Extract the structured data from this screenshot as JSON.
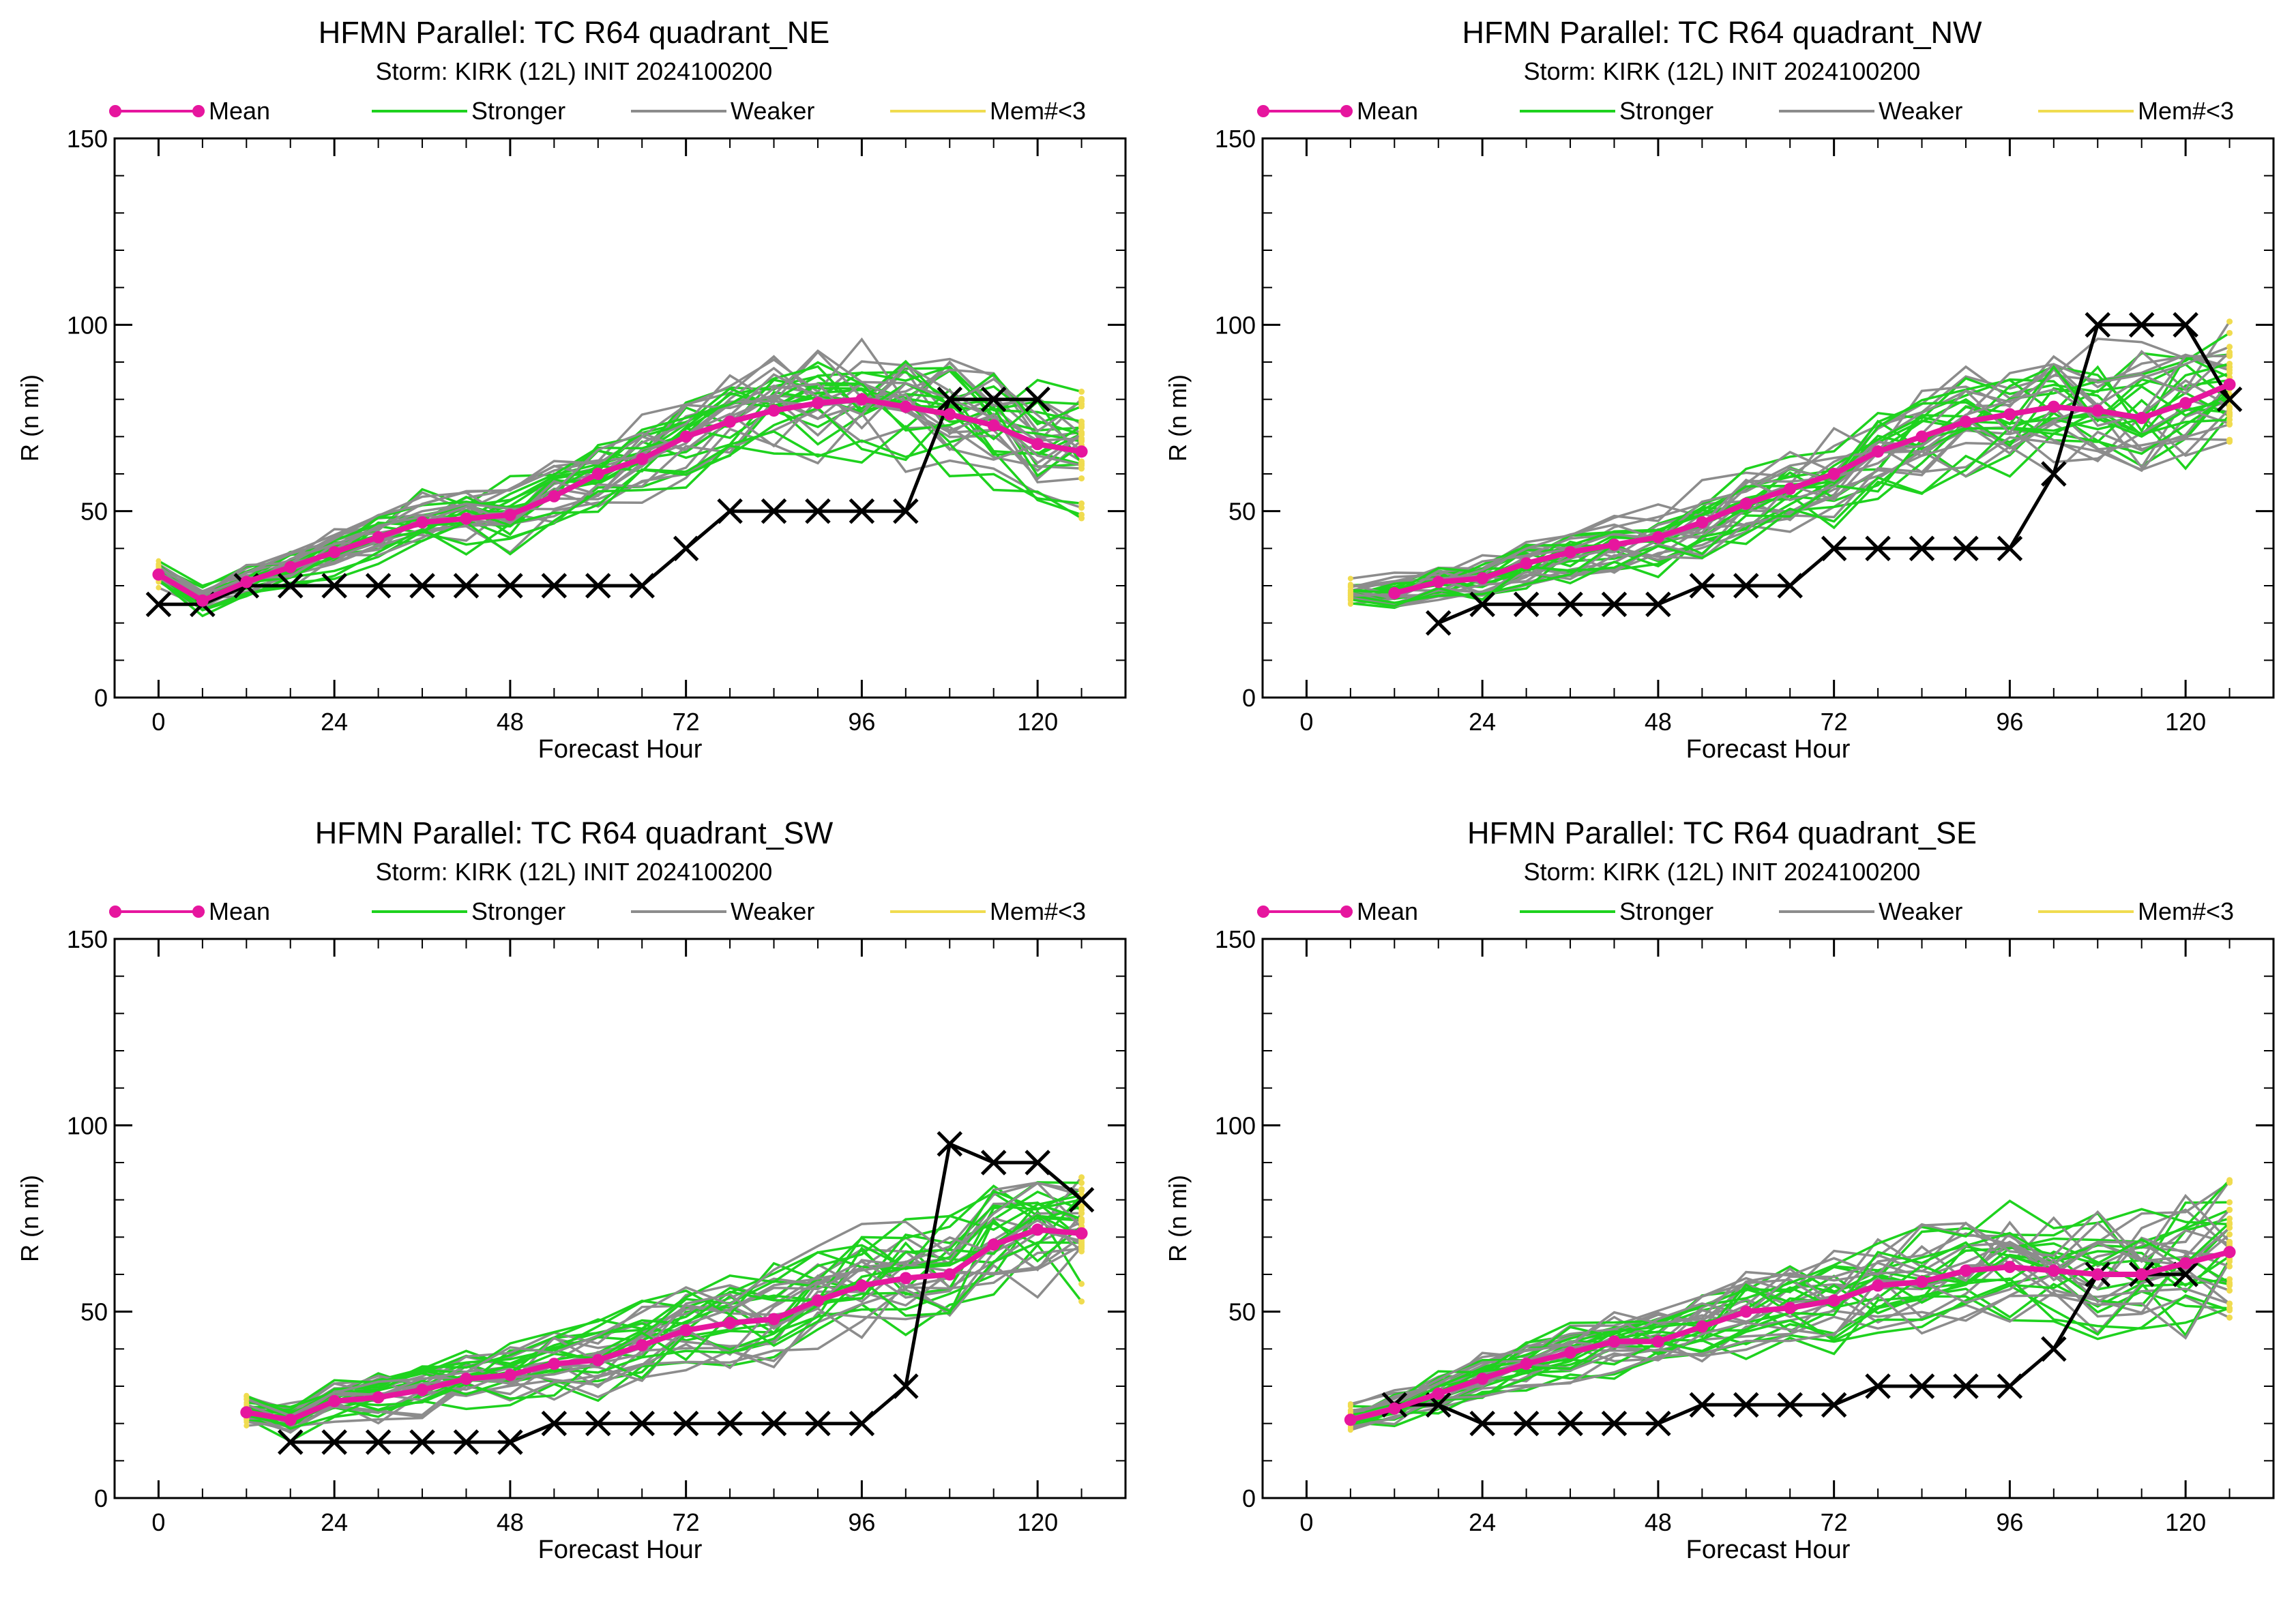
{
  "legend": [
    {
      "label": "Mean",
      "color": "#e6169e",
      "marker": true
    },
    {
      "label": "Stronger",
      "color": "#1ed21e",
      "marker": false
    },
    {
      "label": "Weaker",
      "color": "#8c8c8c",
      "marker": false
    },
    {
      "label": "Mem#<3",
      "color": "#f0dc50",
      "marker": false
    }
  ],
  "colors": {
    "mean": "#e6169e",
    "stronger": "#1ed21e",
    "weaker": "#8c8c8c",
    "few_members": "#f0dc50",
    "best_track": "#000000"
  },
  "panels": [
    {
      "title": "HFMN Parallel: TC  R64 quadrant_NE",
      "subtitle": "Storm: KIRK (12L) INIT 2024100200",
      "chart_data": {
        "type": "line",
        "xlabel": "Forecast Hour",
        "ylabel": "R (n mi)",
        "xlim": [
          -6,
          132
        ],
        "ylim": [
          0,
          150
        ],
        "xticks": [
          0,
          24,
          48,
          72,
          96,
          120
        ],
        "yticks": [
          0,
          50,
          100,
          150
        ],
        "mean": {
          "x": [
            0,
            6,
            12,
            18,
            24,
            30,
            36,
            42,
            48,
            54,
            60,
            66,
            72,
            78,
            84,
            90,
            96,
            102,
            108,
            114,
            120,
            126
          ],
          "y": [
            33,
            26,
            31,
            35,
            39,
            43,
            47,
            48,
            49,
            54,
            60,
            64,
            70,
            74,
            77,
            79,
            80,
            78,
            76,
            73,
            68,
            66
          ]
        },
        "best_track": {
          "x": [
            0,
            6,
            12,
            18,
            24,
            30,
            36,
            42,
            48,
            54,
            60,
            66,
            72,
            78,
            84,
            90,
            96,
            102,
            108,
            114,
            120
          ],
          "y": [
            25,
            25,
            30,
            30,
            30,
            30,
            30,
            30,
            30,
            30,
            30,
            30,
            40,
            50,
            50,
            50,
            50,
            50,
            80,
            80,
            80
          ]
        },
        "members": {
          "start": 0,
          "end": 126,
          "count": 32
        }
      }
    },
    {
      "title": "HFMN Parallel: TC  R64 quadrant_NW",
      "subtitle": "Storm: KIRK (12L) INIT 2024100200",
      "chart_data": {
        "type": "line",
        "xlabel": "Forecast Hour",
        "ylabel": "R (n mi)",
        "xlim": [
          -6,
          132
        ],
        "ylim": [
          0,
          150
        ],
        "xticks": [
          0,
          24,
          48,
          72,
          96,
          120
        ],
        "yticks": [
          0,
          50,
          100,
          150
        ],
        "mean": {
          "x": [
            12,
            18,
            24,
            30,
            36,
            42,
            48,
            54,
            60,
            66,
            72,
            78,
            84,
            90,
            96,
            102,
            108,
            114,
            120,
            126
          ],
          "y": [
            28,
            31,
            32,
            36,
            39,
            41,
            43,
            47,
            52,
            56,
            60,
            66,
            70,
            74,
            76,
            78,
            77,
            75,
            79,
            84
          ]
        },
        "best_track": {
          "x": [
            18,
            24,
            30,
            36,
            42,
            48,
            54,
            60,
            66,
            72,
            78,
            84,
            90,
            96,
            102,
            108,
            114,
            120,
            126
          ],
          "y": [
            20,
            25,
            25,
            25,
            25,
            25,
            30,
            30,
            30,
            40,
            40,
            40,
            40,
            40,
            60,
            100,
            100,
            100,
            80
          ]
        },
        "members": {
          "start": 6,
          "end": 126,
          "count": 32
        }
      }
    },
    {
      "title": "HFMN Parallel: TC  R64 quadrant_SW",
      "subtitle": "Storm: KIRK (12L) INIT 2024100200",
      "chart_data": {
        "type": "line",
        "xlabel": "Forecast Hour",
        "ylabel": "R (n mi)",
        "xlim": [
          -6,
          132
        ],
        "ylim": [
          0,
          150
        ],
        "xticks": [
          0,
          24,
          48,
          72,
          96,
          120
        ],
        "yticks": [
          0,
          50,
          100,
          150
        ],
        "mean": {
          "x": [
            12,
            18,
            24,
            30,
            36,
            42,
            48,
            54,
            60,
            66,
            72,
            78,
            84,
            90,
            96,
            102,
            108,
            114,
            120,
            126
          ],
          "y": [
            23,
            21,
            26,
            27,
            29,
            32,
            33,
            36,
            37,
            41,
            45,
            47,
            48,
            53,
            57,
            59,
            60,
            68,
            72,
            71
          ]
        },
        "best_track": {
          "x": [
            18,
            24,
            30,
            36,
            42,
            48,
            54,
            60,
            66,
            72,
            78,
            84,
            90,
            96,
            102,
            108,
            114,
            120,
            126
          ],
          "y": [
            15,
            15,
            15,
            15,
            15,
            15,
            20,
            20,
            20,
            20,
            20,
            20,
            20,
            20,
            30,
            95,
            90,
            90,
            80
          ]
        },
        "members": {
          "start": 12,
          "end": 126,
          "count": 32
        }
      }
    },
    {
      "title": "HFMN Parallel: TC  R64 quadrant_SE",
      "subtitle": "Storm: KIRK (12L) INIT 2024100200",
      "chart_data": {
        "type": "line",
        "xlabel": "Forecast Hour",
        "ylabel": "R (n mi)",
        "xlim": [
          -6,
          132
        ],
        "ylim": [
          0,
          150
        ],
        "xticks": [
          0,
          24,
          48,
          72,
          96,
          120
        ],
        "yticks": [
          0,
          50,
          100,
          150
        ],
        "mean": {
          "x": [
            6,
            12,
            18,
            24,
            30,
            36,
            42,
            48,
            54,
            60,
            66,
            72,
            78,
            84,
            90,
            96,
            102,
            108,
            114,
            120,
            126
          ],
          "y": [
            21,
            24,
            28,
            32,
            36,
            39,
            42,
            42,
            46,
            50,
            51,
            53,
            57,
            58,
            61,
            62,
            61,
            60,
            60,
            63,
            66
          ]
        },
        "best_track": {
          "x": [
            12,
            18,
            24,
            30,
            36,
            42,
            48,
            54,
            60,
            66,
            72,
            78,
            84,
            90,
            96,
            102,
            108,
            114,
            120
          ],
          "y": [
            25,
            25,
            20,
            20,
            20,
            20,
            20,
            25,
            25,
            25,
            25,
            30,
            30,
            30,
            30,
            40,
            60,
            60,
            60
          ]
        },
        "members": {
          "start": 6,
          "end": 126,
          "count": 32
        }
      }
    }
  ]
}
